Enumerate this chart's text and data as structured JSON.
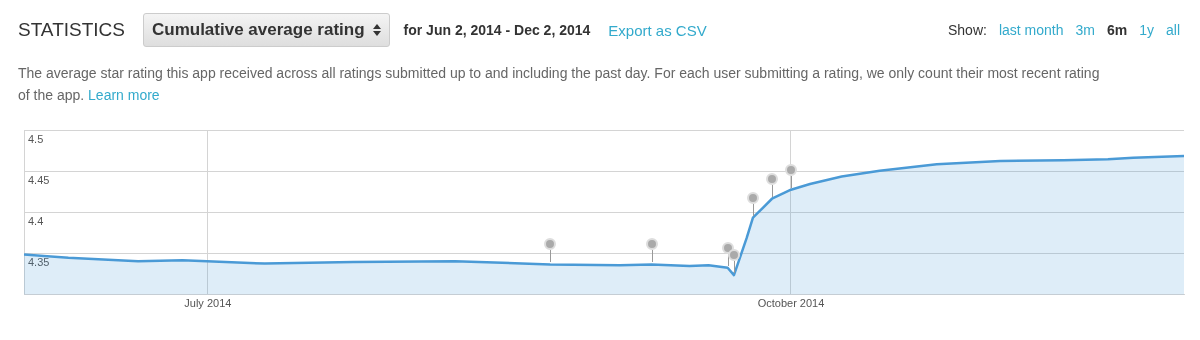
{
  "chart_data": {
    "type": "area",
    "title": "STATISTICS",
    "subtitle": "Cumulative average rating",
    "annotations": [
      "for Jun 2, 2014 - Dec 2, 2014",
      "Export as CSV",
      "Show:",
      "last month",
      "3m",
      "6m",
      "1y",
      "all",
      "The average star rating this app received across all ratings submitted up to and including the past day. For each user submitting a rating, we only count their most recent rating of the app.",
      "Learn more"
    ],
    "x": [
      "2014-06-02",
      "2014-06-09",
      "2014-06-20",
      "2014-06-27",
      "2014-07-10",
      "2014-07-24",
      "2014-08-09",
      "2014-08-24",
      "2014-09-04",
      "2014-09-09",
      "2014-09-15",
      "2014-09-18",
      "2014-09-21",
      "2014-09-22",
      "2014-09-24",
      "2014-09-25",
      "2014-09-28",
      "2014-10-01",
      "2014-10-04",
      "2014-10-09",
      "2014-10-15",
      "2014-10-24",
      "2014-11-03",
      "2014-11-13",
      "2014-11-20",
      "2014-11-24",
      "2014-12-02"
    ],
    "series": [
      {
        "color": "#4a9ad6",
        "values": [
          4.349,
          4.345,
          4.341,
          4.342,
          4.338,
          4.34,
          4.341,
          4.337,
          4.336,
          4.337,
          4.335,
          4.336,
          4.333,
          4.324,
          4.369,
          4.394,
          4.417,
          4.428,
          4.435,
          4.444,
          4.451,
          4.459,
          4.463,
          4.464,
          4.465,
          4.467,
          4.469
        ]
      }
    ],
    "xlim": [
      "2014-06-02",
      "2014-12-02"
    ],
    "xticks": [
      {
        "value": "2014-07-01",
        "label": "July 2014"
      },
      {
        "value": "2014-10-01",
        "label": "October 2014"
      }
    ],
    "ylim": [
      4.3,
      4.5
    ],
    "yticks": [
      4.35,
      4.4,
      4.45,
      4.5
    ],
    "grid": true,
    "legend": false,
    "marker": "none",
    "line_style": "solid"
  }
}
